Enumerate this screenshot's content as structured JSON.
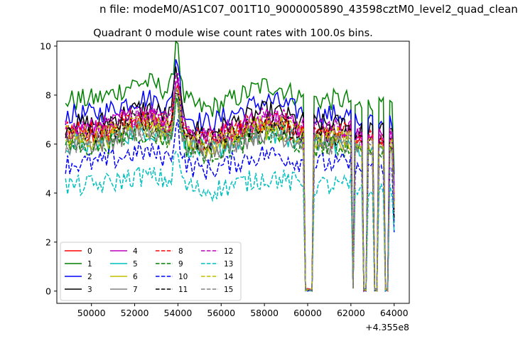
{
  "suptitle": "n file: modeM0/AS1C07_001T10_9000005890_43598cztM0_level2_quad_clean",
  "chart_data": {
    "type": "line",
    "title": "Quadrant 0 module wise count rates with 100.0s bins.",
    "xlabel": "",
    "ylabel": "",
    "x_offset_label": "+4.355e8",
    "xlim": [
      48400,
      64700
    ],
    "ylim": [
      -0.5,
      10.2
    ],
    "xticks": [
      50000,
      52000,
      54000,
      56000,
      58000,
      60000,
      62000,
      64000
    ],
    "yticks": [
      0,
      2,
      4,
      6,
      8,
      10
    ],
    "grid": false,
    "legend_position": "lower-left",
    "legend_columns": 4,
    "x_start": 48800,
    "x_step": 100,
    "n_points": 153,
    "gaps": [
      {
        "from": 59900,
        "to": 60200,
        "value": 0
      },
      {
        "from": 62100,
        "to": 62150,
        "value": 0.1
      },
      {
        "from": 62600,
        "to": 62700,
        "value": 0
      },
      {
        "from": 63100,
        "to": 63200,
        "value": 0
      },
      {
        "from": 63600,
        "to": 63700,
        "value": 0
      }
    ],
    "series": [
      {
        "name": "0",
        "color": "#ff0000",
        "dash": "solid",
        "level": 6.3
      },
      {
        "name": "1",
        "color": "#008000",
        "dash": "solid",
        "level": 7.8
      },
      {
        "name": "2",
        "color": "#0000ff",
        "dash": "solid",
        "level": 7.2
      },
      {
        "name": "3",
        "color": "#000000",
        "dash": "solid",
        "level": 6.8
      },
      {
        "name": "4",
        "color": "#bf00bf",
        "dash": "solid",
        "level": 6.6
      },
      {
        "name": "5",
        "color": "#00bfbf",
        "dash": "solid",
        "level": 6.0
      },
      {
        "name": "6",
        "color": "#bfbf00",
        "dash": "solid",
        "level": 6.1
      },
      {
        "name": "7",
        "color": "#808080",
        "dash": "solid",
        "level": 6.0
      },
      {
        "name": "8",
        "color": "#ff0000",
        "dash": "dashed",
        "level": 6.5
      },
      {
        "name": "9",
        "color": "#008000",
        "dash": "dashed",
        "level": 5.9
      },
      {
        "name": "10",
        "color": "#0000ff",
        "dash": "dashed",
        "level": 5.2
      },
      {
        "name": "11",
        "color": "#000000",
        "dash": "dashed",
        "level": 6.4
      },
      {
        "name": "12",
        "color": "#bf00bf",
        "dash": "dashed",
        "level": 6.6
      },
      {
        "name": "13",
        "color": "#00bfbf",
        "dash": "dashed",
        "level": 4.3
      },
      {
        "name": "14",
        "color": "#bfbf00",
        "dash": "dashed",
        "level": 6.3
      },
      {
        "name": "15",
        "color": "#808080",
        "dash": "dashed",
        "level": 6.0
      }
    ]
  }
}
